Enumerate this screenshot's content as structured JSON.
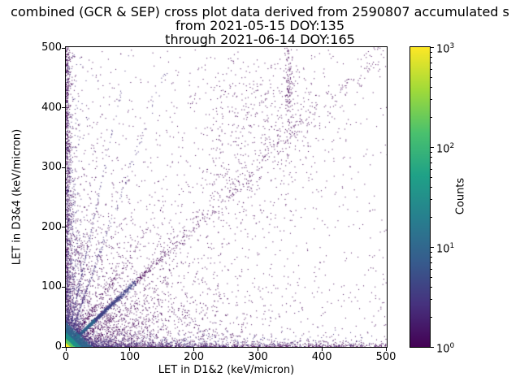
{
  "figure": {
    "background": "#ffffff"
  },
  "chart_data": {
    "type": "scatter",
    "title": "combined (GCR & SEP) cross plot data derived from 2590807 accumulated s\nfrom 2021-05-15 DOY:135\nthrough 2021-06-14 DOY:165",
    "title_lines": [
      "combined (GCR & SEP) cross plot data derived from 2590807 accumulated s",
      "from 2021-05-15 DOY:135",
      "through 2021-06-14 DOY:165"
    ],
    "xlabel": "LET in D1&2 (keV/micron)",
    "ylabel": "LET in D3&4 (keV/micron)",
    "xlim": [
      0,
      500
    ],
    "ylim": [
      0,
      500
    ],
    "xticks": [
      0,
      100,
      200,
      300,
      400,
      500
    ],
    "yticks": [
      0,
      100,
      200,
      300,
      400,
      500
    ],
    "grid": false,
    "legend": false,
    "colorbar": {
      "label": "Counts",
      "scale": "log",
      "range": [
        1,
        1000
      ],
      "colormap": "viridis",
      "major_exponents": [
        0,
        1,
        2,
        3
      ],
      "minor_ticks": true,
      "gradient": [
        "#440154",
        "#46327e",
        "#365c8d",
        "#277f8e",
        "#1fa187",
        "#4ac16d",
        "#a0da39",
        "#fde725"
      ]
    },
    "seed": 1337,
    "point_size": 1,
    "features": [
      {
        "name": "near-origin-cloud",
        "kind": "exp2d",
        "count": 2300,
        "params": {
          "sx": 105,
          "sy": 105
        },
        "color": "#440154"
      },
      {
        "name": "uniform-background",
        "kind": "uniform",
        "count": 750,
        "params": {},
        "color": "#440154"
      },
      {
        "name": "bottom-edge-band",
        "kind": "edgex",
        "count": 850,
        "params": {
          "uniform": true,
          "s": 3
        },
        "color": "#440154"
      },
      {
        "name": "bottom-band-wide",
        "kind": "edgex",
        "count": 950,
        "params": {
          "len": 170,
          "s": 8
        },
        "color": "#46327e"
      },
      {
        "name": "left-edge-band",
        "kind": "edgey",
        "count": 850,
        "params": {
          "uniform": true,
          "s": 3
        },
        "color": "#440154"
      },
      {
        "name": "left-band-wide",
        "kind": "edgey",
        "count": 950,
        "params": {
          "len": 170,
          "s": 8
        },
        "color": "#46327e"
      },
      {
        "name": "ray-slope-3",
        "kind": "diag",
        "count": 280,
        "params": {
          "scale": 38,
          "slope": 3,
          "jitter": 1,
          "spread": 0.05
        },
        "color": "#46327e"
      },
      {
        "name": "ray-slope-5",
        "kind": "diag",
        "count": 200,
        "params": {
          "scale": 30,
          "slope": 5,
          "jitter": 1,
          "spread": 0.05
        },
        "color": "#46327e"
      },
      {
        "name": "ray-slope-1p5",
        "kind": "diag",
        "count": 220,
        "params": {
          "scale": 48,
          "slope": 1.5,
          "jitter": 1,
          "spread": 0.05
        },
        "color": "#440154"
      },
      {
        "name": "ray-slope-0p66",
        "kind": "diag",
        "count": 220,
        "params": {
          "scale": 70,
          "slope": 0.66,
          "jitter": 1,
          "spread": 0.05
        },
        "color": "#440154"
      },
      {
        "name": "ray-slope-0p33",
        "kind": "diag",
        "count": 260,
        "params": {
          "scale": 110,
          "slope": 0.33,
          "jitter": 1.2,
          "spread": 0.05
        },
        "color": "#440154"
      },
      {
        "name": "upper-mid-cluster",
        "kind": "gauss",
        "count": 380,
        "params": {
          "cx": 310,
          "cy": 395,
          "sx": 55,
          "sy": 60
        },
        "color": "#440154"
      },
      {
        "name": "upper-streak",
        "kind": "gauss",
        "count": 130,
        "params": {
          "cx": 347,
          "cy": 440,
          "sx": 3,
          "sy": 38
        },
        "color": "#440154"
      },
      {
        "name": "mid-diagonal-clump",
        "kind": "gauss",
        "count": 200,
        "params": {
          "cx": 262,
          "cy": 268,
          "sx": 48,
          "sy": 48
        },
        "color": "#440154"
      },
      {
        "name": "diagonal-tail",
        "kind": "diag",
        "count": 420,
        "params": {
          "uniform": true,
          "len": 495,
          "slope": 1,
          "jitter": 2.5,
          "spread": 0.03
        },
        "color": "#440154"
      },
      {
        "name": "main-diagonal",
        "kind": "diag",
        "count": 3200,
        "params": {
          "scale": 32,
          "slope": 1,
          "jitter": 0.7,
          "spread": 0.02
        },
        "radial": {
          "metric": "t",
          "thresholds": [
            8,
            20,
            45,
            110
          ],
          "palette": [
            "#5ec962",
            "#21918c",
            "#31688e",
            "#414487",
            "#440154"
          ]
        }
      },
      {
        "name": "origin-hotspot",
        "kind": "exp2d",
        "count": 5200,
        "params": {
          "sx": 9,
          "sy": 9
        },
        "radial": {
          "metric": "sum",
          "thresholds": [
            7,
            14,
            24,
            42,
            75
          ],
          "palette": [
            "#fde725",
            "#5ec962",
            "#21918c",
            "#31688e",
            "#443983",
            "#440154"
          ]
        }
      }
    ]
  }
}
